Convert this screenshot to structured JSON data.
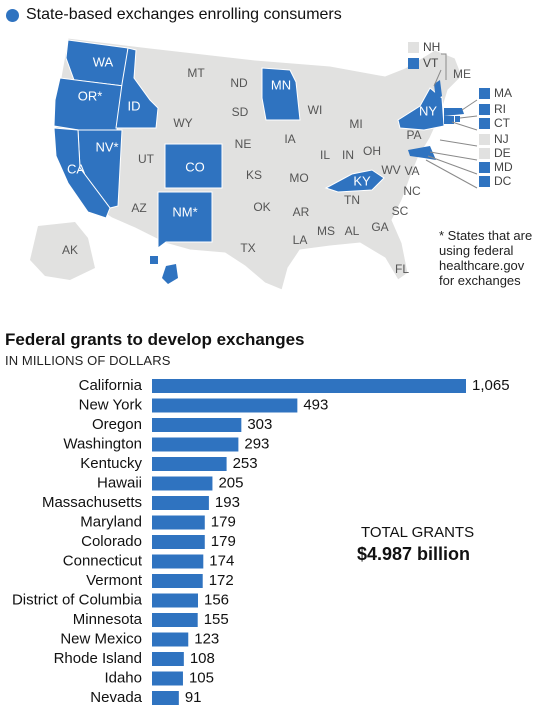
{
  "legend": {
    "label": "State-based exchanges enrolling consumers",
    "color": "#2f73c0"
  },
  "map": {
    "selected_color": "#2f73c0",
    "other_color": "#e1e1e0",
    "states": [
      {
        "abbr": "WA",
        "label": "WA",
        "selected": true
      },
      {
        "abbr": "OR",
        "label": "OR*",
        "selected": true
      },
      {
        "abbr": "ID",
        "label": "ID",
        "selected": true
      },
      {
        "abbr": "NV",
        "label": "NV*",
        "selected": true
      },
      {
        "abbr": "CA",
        "label": "CA",
        "selected": true
      },
      {
        "abbr": "CO",
        "label": "CO",
        "selected": true
      },
      {
        "abbr": "NM",
        "label": "NM*",
        "selected": true
      },
      {
        "abbr": "MN",
        "label": "MN",
        "selected": true
      },
      {
        "abbr": "KY",
        "label": "KY",
        "selected": true
      },
      {
        "abbr": "NY",
        "label": "NY",
        "selected": true
      },
      {
        "abbr": "HI",
        "label": "HI",
        "selected": true
      },
      {
        "abbr": "MT",
        "label": "MT",
        "selected": false
      },
      {
        "abbr": "ND",
        "label": "ND",
        "selected": false
      },
      {
        "abbr": "SD",
        "label": "SD",
        "selected": false
      },
      {
        "abbr": "WY",
        "label": "WY",
        "selected": false
      },
      {
        "abbr": "NE",
        "label": "NE",
        "selected": false
      },
      {
        "abbr": "UT",
        "label": "UT",
        "selected": false
      },
      {
        "abbr": "AZ",
        "label": "AZ",
        "selected": false
      },
      {
        "abbr": "KS",
        "label": "KS",
        "selected": false
      },
      {
        "abbr": "OK",
        "label": "OK",
        "selected": false
      },
      {
        "abbr": "TX",
        "label": "TX",
        "selected": false
      },
      {
        "abbr": "IA",
        "label": "IA",
        "selected": false
      },
      {
        "abbr": "MO",
        "label": "MO",
        "selected": false
      },
      {
        "abbr": "AR",
        "label": "AR",
        "selected": false
      },
      {
        "abbr": "LA",
        "label": "LA",
        "selected": false
      },
      {
        "abbr": "WI",
        "label": "WI",
        "selected": false
      },
      {
        "abbr": "IL",
        "label": "IL",
        "selected": false
      },
      {
        "abbr": "MI",
        "label": "MI",
        "selected": false
      },
      {
        "abbr": "IN",
        "label": "IN",
        "selected": false
      },
      {
        "abbr": "OH",
        "label": "OH",
        "selected": false
      },
      {
        "abbr": "TN",
        "label": "TN",
        "selected": false
      },
      {
        "abbr": "MS",
        "label": "MS",
        "selected": false
      },
      {
        "abbr": "AL",
        "label": "AL",
        "selected": false
      },
      {
        "abbr": "GA",
        "label": "GA",
        "selected": false
      },
      {
        "abbr": "FL",
        "label": "FL",
        "selected": false
      },
      {
        "abbr": "SC",
        "label": "SC",
        "selected": false
      },
      {
        "abbr": "NC",
        "label": "NC",
        "selected": false
      },
      {
        "abbr": "VA",
        "label": "VA",
        "selected": false
      },
      {
        "abbr": "WV",
        "label": "WV",
        "selected": false
      },
      {
        "abbr": "PA",
        "label": "PA",
        "selected": false
      },
      {
        "abbr": "ME",
        "label": "ME",
        "selected": false
      },
      {
        "abbr": "AK",
        "label": "AK",
        "selected": false
      }
    ],
    "northeast_key": [
      {
        "abbr": "NH",
        "selected": false
      },
      {
        "abbr": "VT",
        "selected": true
      },
      {
        "abbr": "MA",
        "selected": true
      },
      {
        "abbr": "RI",
        "selected": true
      },
      {
        "abbr": "CT",
        "selected": true
      },
      {
        "abbr": "NJ",
        "selected": false
      },
      {
        "abbr": "DE",
        "selected": false
      },
      {
        "abbr": "MD",
        "selected": true
      },
      {
        "abbr": "DC",
        "selected": true
      }
    ],
    "note": "* States that are using federal healthcare.gov for exchanges"
  },
  "grants": {
    "title": "Federal grants to develop exchanges",
    "subtitle": "IN MILLIONS OF DOLLARS",
    "total_label": "TOTAL GRANTS",
    "total_value": "$4.987 billion"
  },
  "chart_data": {
    "type": "bar",
    "orientation": "horizontal",
    "title": "Federal grants to develop exchanges",
    "ylabel": "IN MILLIONS OF DOLLARS",
    "color": "#2f73c0",
    "categories": [
      "California",
      "New York",
      "Oregon",
      "Washington",
      "Kentucky",
      "Hawaii",
      "Massachusetts",
      "Maryland",
      "Colorado",
      "Connecticut",
      "Vermont",
      "District of Columbia",
      "Minnesota",
      "New Mexico",
      "Rhode Island",
      "Idaho",
      "Nevada"
    ],
    "values": [
      1065,
      493,
      303,
      293,
      253,
      205,
      193,
      179,
      179,
      174,
      172,
      156,
      155,
      123,
      108,
      105,
      91
    ],
    "value_labels": [
      "1,065",
      "493",
      "303",
      "293",
      "253",
      "205",
      "193",
      "179",
      "179",
      "174",
      "172",
      "156",
      "155",
      "123",
      "108",
      "105",
      "91"
    ],
    "xlim": [
      0,
      1065
    ]
  }
}
